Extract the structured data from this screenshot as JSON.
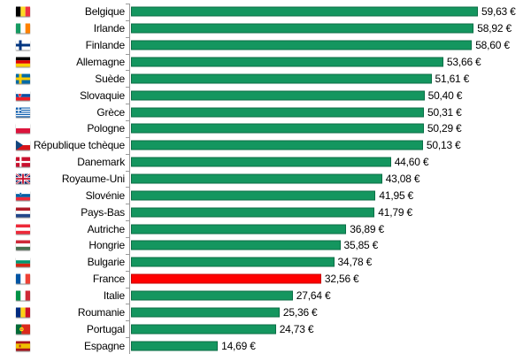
{
  "chart_data": {
    "type": "bar",
    "orientation": "horizontal",
    "title": "",
    "xlabel": "",
    "ylabel": "",
    "unit": "€",
    "xlim": [
      0,
      61
    ],
    "grid": false,
    "legend": false,
    "bar_color": "#14965F",
    "bar_border_color": "#0B6E46",
    "highlight_category": "France",
    "highlight_color": "#FF0000",
    "highlight_border_color": "#C40000",
    "axis_color": "#9A9A9A",
    "categories": [
      "Belgique",
      "Irlande",
      "Finlande",
      "Allemagne",
      "Suède",
      "Slovaquie",
      "Grèce",
      "Pologne",
      "République tchèque",
      "Danemark",
      "Royaume-Uni",
      "Slovénie",
      "Pays-Bas",
      "Autriche",
      "Hongrie",
      "Bulgarie",
      "France",
      "Italie",
      "Roumanie",
      "Portugal",
      "Espagne"
    ],
    "values": [
      59.63,
      58.92,
      58.6,
      53.66,
      51.61,
      50.4,
      50.31,
      50.29,
      50.13,
      44.6,
      43.08,
      41.95,
      41.79,
      36.89,
      35.85,
      34.78,
      32.56,
      27.64,
      25.36,
      24.73,
      14.69
    ],
    "rows": [
      {
        "country": "Belgique",
        "flag": "belgium",
        "value": 59.63,
        "label": "59,63 €"
      },
      {
        "country": "Irlande",
        "flag": "ireland",
        "value": 58.92,
        "label": "58,92 €"
      },
      {
        "country": "Finlande",
        "flag": "finland",
        "value": 58.6,
        "label": "58,60 €"
      },
      {
        "country": "Allemagne",
        "flag": "germany",
        "value": 53.66,
        "label": "53,66 €"
      },
      {
        "country": "Suède",
        "flag": "sweden",
        "value": 51.61,
        "label": "51,61 €"
      },
      {
        "country": "Slovaquie",
        "flag": "slovakia",
        "value": 50.4,
        "label": "50,40 €"
      },
      {
        "country": "Grèce",
        "flag": "greece",
        "value": 50.31,
        "label": "50,31 €"
      },
      {
        "country": "Pologne",
        "flag": "poland",
        "value": 50.29,
        "label": "50,29 €"
      },
      {
        "country": "République tchèque",
        "flag": "czech-republic",
        "value": 50.13,
        "label": "50,13 €"
      },
      {
        "country": "Danemark",
        "flag": "denmark",
        "value": 44.6,
        "label": "44,60 €"
      },
      {
        "country": "Royaume-Uni",
        "flag": "united-kingdom",
        "value": 43.08,
        "label": "43,08 €"
      },
      {
        "country": "Slovénie",
        "flag": "slovenia",
        "value": 41.95,
        "label": "41,95 €"
      },
      {
        "country": "Pays-Bas",
        "flag": "netherlands",
        "value": 41.79,
        "label": "41,79 €"
      },
      {
        "country": "Autriche",
        "flag": "austria",
        "value": 36.89,
        "label": "36,89 €"
      },
      {
        "country": "Hongrie",
        "flag": "hungary",
        "value": 35.85,
        "label": "35,85 €"
      },
      {
        "country": "Bulgarie",
        "flag": "bulgaria",
        "value": 34.78,
        "label": "34,78 €"
      },
      {
        "country": "France",
        "flag": "france",
        "value": 32.56,
        "label": "32,56 €"
      },
      {
        "country": "Italie",
        "flag": "italy",
        "value": 27.64,
        "label": "27,64 €"
      },
      {
        "country": "Roumanie",
        "flag": "romania",
        "value": 25.36,
        "label": "25,36 €"
      },
      {
        "country": "Portugal",
        "flag": "portugal",
        "value": 24.73,
        "label": "24,73 €"
      },
      {
        "country": "Espagne",
        "flag": "spain",
        "value": 14.69,
        "label": "14,69 €"
      }
    ]
  }
}
